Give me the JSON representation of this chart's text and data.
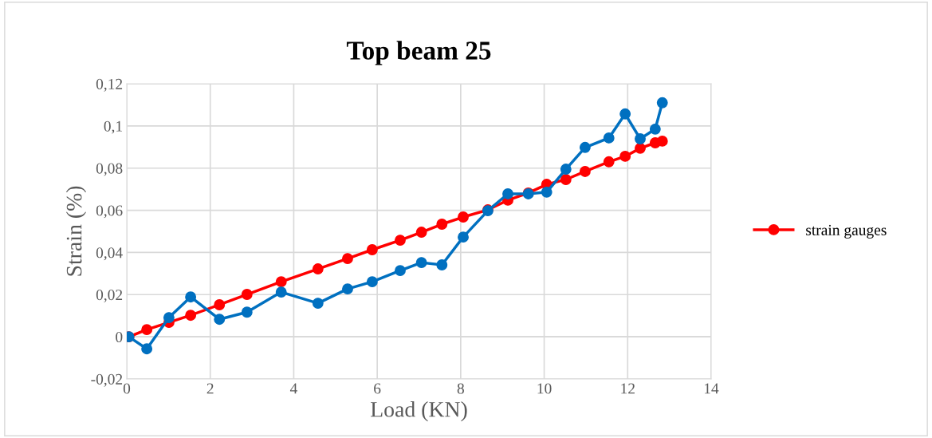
{
  "chart_data": {
    "type": "line",
    "title": "Top beam 25",
    "xlabel": "Load (KN)",
    "ylabel": "Strain (%)",
    "xlim": [
      0,
      14
    ],
    "xticks": [
      0,
      2,
      4,
      6,
      8,
      10,
      12,
      14
    ],
    "ylim": [
      -0.02,
      0.12
    ],
    "yticks": [
      {
        "value": -0.02,
        "label": "-0,02"
      },
      {
        "value": 0,
        "label": "0"
      },
      {
        "value": 0.02,
        "label": "0,02"
      },
      {
        "value": 0.04,
        "label": "0,04"
      },
      {
        "value": 0.06,
        "label": "0,06"
      },
      {
        "value": 0.08,
        "label": "0,08"
      },
      {
        "value": 0.1,
        "label": "0,1"
      },
      {
        "value": 0.12,
        "label": "0,12"
      }
    ],
    "grid": true,
    "legend": "right",
    "marker": "circle",
    "line_style": "solid",
    "x": [
      0.05,
      0.48,
      1.01,
      1.53,
      2.22,
      2.88,
      3.7,
      4.58,
      5.29,
      5.88,
      6.55,
      7.06,
      7.55,
      8.06,
      8.65,
      9.13,
      9.62,
      10.06,
      10.52,
      10.98,
      11.55,
      11.94,
      12.3,
      12.66,
      12.83
    ],
    "series": [
      {
        "name": "strain gauges",
        "color": "#ff0000",
        "values": [
          0,
          0.0034,
          0.0068,
          0.0102,
          0.0152,
          0.0201,
          0.0261,
          0.0322,
          0.0371,
          0.0413,
          0.0458,
          0.0496,
          0.0534,
          0.0568,
          0.0602,
          0.0648,
          0.0682,
          0.0723,
          0.0746,
          0.0784,
          0.083,
          0.0856,
          0.0894,
          0.092,
          0.0928
        ]
      },
      {
        "color": "#0070c0",
        "values": [
          0,
          -0.0057,
          0.0091,
          0.0189,
          0.0083,
          0.0117,
          0.0212,
          0.0159,
          0.0227,
          0.0261,
          0.0314,
          0.0352,
          0.0341,
          0.0473,
          0.0598,
          0.0678,
          0.0678,
          0.0686,
          0.0795,
          0.0898,
          0.0943,
          0.1057,
          0.0939,
          0.0985,
          0.111
        ]
      }
    ]
  }
}
